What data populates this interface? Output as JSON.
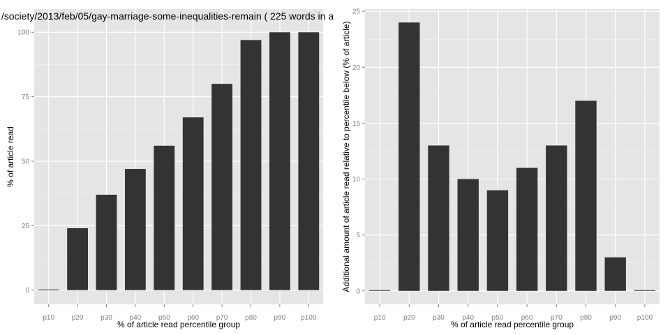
{
  "chart_data": [
    {
      "type": "bar",
      "title": "/society/2013/feb/05/gay-marriage-some-inequalities-remain ( 225 words in a",
      "xlabel": "% of article read percentile group",
      "ylabel": "% of article read",
      "categories": [
        "p10",
        "p20",
        "p30",
        "p40",
        "p50",
        "p60",
        "p70",
        "p80",
        "p90",
        "p100"
      ],
      "values": [
        0,
        24,
        37,
        47,
        56,
        67,
        80,
        97,
        100,
        100
      ],
      "yticks": [
        0,
        25,
        50,
        75,
        100
      ],
      "ylim": [
        -5.5,
        109
      ],
      "grid": true,
      "bar_color": "#333333",
      "panel_bg": "#e5e5e5",
      "grid_color": "#ffffff"
    },
    {
      "type": "bar",
      "title": "",
      "xlabel": "% of article read percentile group",
      "ylabel": "Additional amount of article read relative to percentile below (% of article)",
      "categories": [
        "p10",
        "p20",
        "p30",
        "p40",
        "p50",
        "p60",
        "p70",
        "p80",
        "p90",
        "p100"
      ],
      "values": [
        0,
        24,
        13,
        10,
        9,
        11,
        13,
        17,
        3,
        0
      ],
      "yticks": [
        0,
        5,
        10,
        15,
        20,
        25
      ],
      "ylim": [
        -1.2,
        25.2
      ],
      "grid": true,
      "bar_color": "#333333",
      "panel_bg": "#e5e5e5",
      "grid_color": "#ffffff"
    }
  ]
}
